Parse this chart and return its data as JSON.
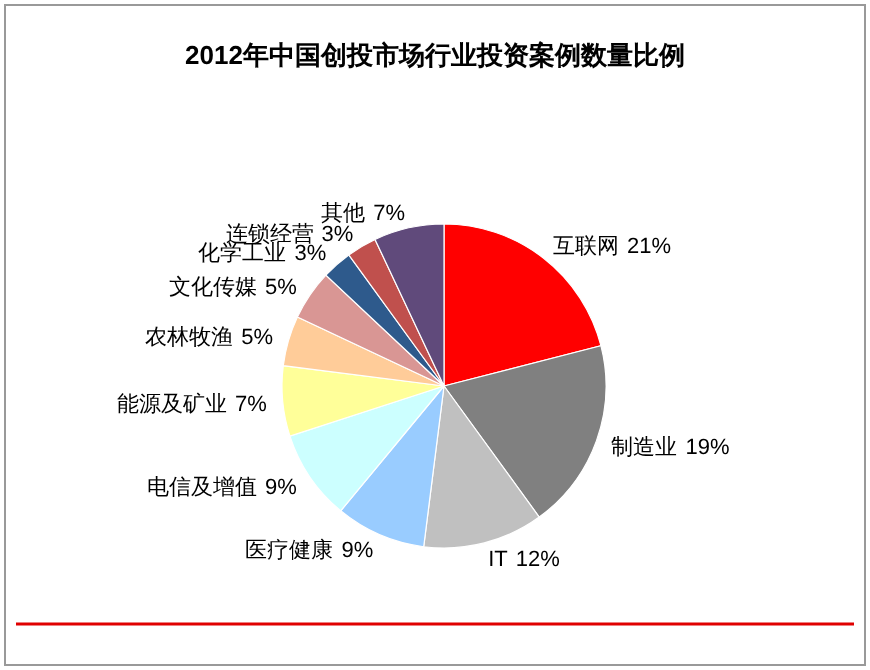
{
  "chart_data": {
    "type": "pie",
    "title": "2012年中国创投市场行业投资案例数量比例",
    "categories": [
      "互联网",
      "制造业",
      "IT",
      "医疗健康",
      "电信及增值",
      "能源及矿业",
      "农林牧渔",
      "文化传媒",
      "化学工业",
      "连锁经营",
      "其他"
    ],
    "values": [
      21,
      19,
      12,
      9,
      9,
      7,
      5,
      5,
      3,
      3,
      7
    ],
    "colors": [
      "#ff0000",
      "#808080",
      "#c0c0c0",
      "#99ccff",
      "#ccffff",
      "#ffff99",
      "#ffcc99",
      "#d99694",
      "#2e5a8c",
      "#c0504d",
      "#604a7b"
    ],
    "value_labels": [
      "21%",
      "19%",
      "12%",
      "9%",
      "9%",
      "7%",
      "5%",
      "5%",
      "3%",
      "3%",
      "7%"
    ]
  }
}
